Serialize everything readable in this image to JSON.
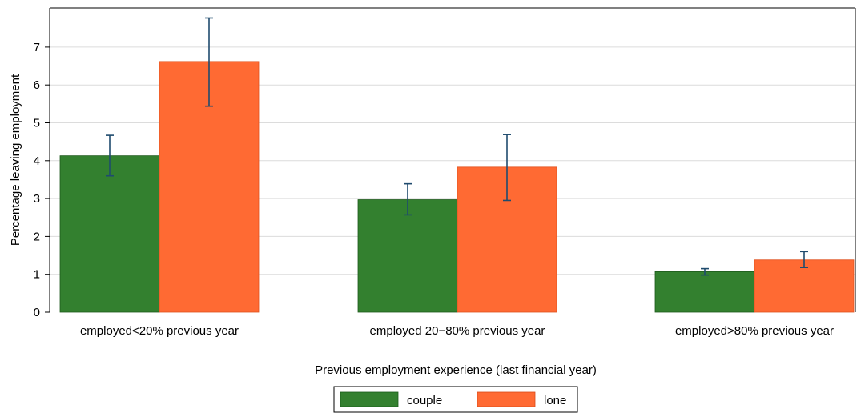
{
  "chart_data": {
    "type": "bar",
    "title": "",
    "xlabel": "Previous employment experience (last financial year)",
    "ylabel": "Percentage leaving employment",
    "categories": [
      "employed<20% previous year",
      "employed 20−80% previous year",
      "employed>80% previous year"
    ],
    "series": [
      {
        "name": "couple",
        "color": "#33802f",
        "values": [
          4.13,
          2.97,
          1.07
        ],
        "err_low": [
          3.6,
          2.57,
          0.98
        ],
        "err_high": [
          4.67,
          3.39,
          1.15
        ]
      },
      {
        "name": "lone",
        "color": "#ff6a33",
        "values": [
          6.62,
          3.83,
          1.38
        ],
        "err_low": [
          5.44,
          2.95,
          1.18
        ],
        "err_high": [
          7.77,
          4.69,
          1.6
        ]
      }
    ],
    "ylim": [
      0,
      8
    ],
    "yticks": [
      0,
      1,
      2,
      3,
      4,
      5,
      6,
      7
    ],
    "grid": true,
    "error_bars": true,
    "error_bar_color": "#1f4b6e",
    "legend_position": "bottom"
  }
}
